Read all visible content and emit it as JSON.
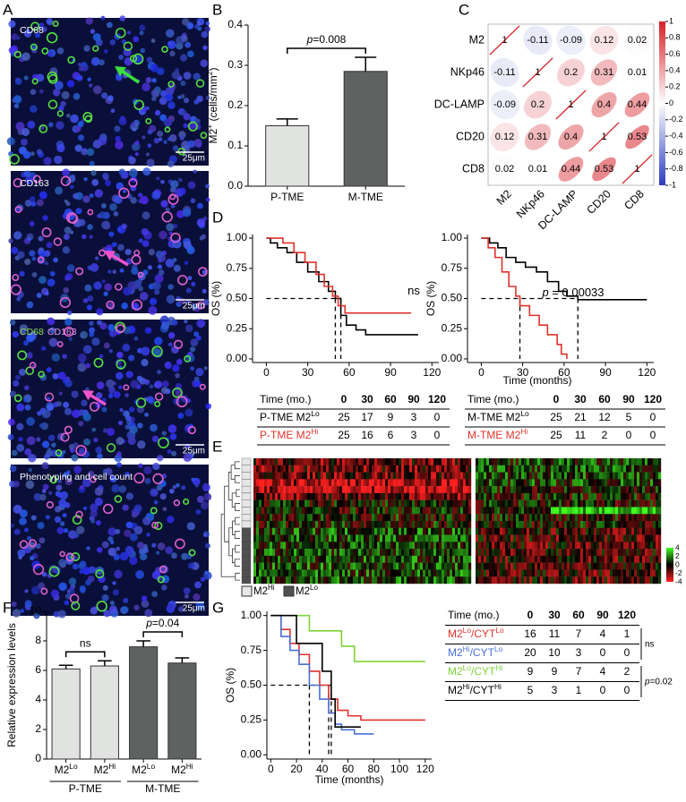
{
  "panel_labels": [
    "A",
    "B",
    "C",
    "D",
    "E",
    "F",
    "G"
  ],
  "images": [
    {
      "caption": [
        "CD68"
      ],
      "colors": [
        "#ffffff"
      ],
      "scale": "25μm"
    },
    {
      "caption": [
        "CD163"
      ],
      "colors": [
        "#ffffff"
      ],
      "scale": "25μm"
    },
    {
      "caption": [
        "CD68",
        "CD163"
      ],
      "colors": [
        "#8fe04a",
        "#e59ae0"
      ],
      "scale": "25μm"
    },
    {
      "caption": [
        "Phenotyping and cell count"
      ],
      "colors": [
        "#ffffff"
      ],
      "scale": "25μm"
    }
  ],
  "chart_data": [
    {
      "type": "bar",
      "ylabel": [
        "M2",
        "+",
        " (cells/mm",
        "2",
        ")"
      ],
      "categories": [
        [
          "P-TME"
        ],
        [
          "M-TME"
        ]
      ],
      "values": [
        0.15,
        0.285
      ],
      "errors": [
        0.017,
        0.035
      ],
      "colors": [
        "#e1e3e1",
        "#5e6361"
      ],
      "ylim": [
        0,
        0.4
      ],
      "yticks": [
        {
          "value": 0,
          "label": "0.0"
        },
        0.1,
        0.2,
        0.3,
        0.4
      ],
      "annotations": [
        [
          "p",
          "=0.008"
        ]
      ]
    },
    {
      "type": "corr",
      "labels": [
        "M2",
        "NKp46",
        "DC-LAMP",
        "CD20",
        "CD8"
      ],
      "matrix": [
        [
          1,
          -0.11,
          -0.09,
          0.12,
          0.02
        ],
        [
          -0.11,
          1,
          0.2,
          0.31,
          0.01
        ],
        [
          -0.09,
          0.2,
          1,
          0.4,
          0.44
        ],
        [
          0.12,
          0.31,
          0.4,
          1,
          0.53
        ],
        [
          0.02,
          0.01,
          0.44,
          0.53,
          1
        ]
      ],
      "clim": [
        -1,
        1
      ],
      "cticks": [
        1,
        0.8,
        0.6,
        0.4,
        0.2,
        0,
        -0.2,
        -0.4,
        -0.6,
        -0.8,
        -1
      ],
      "colors": [
        "#2b3dbf",
        "#ffffff",
        "#d51f26"
      ]
    },
    {
      "type": "km",
      "xlim": [
        -10,
        125
      ],
      "xticks": [
        0,
        30,
        60,
        90,
        120
      ],
      "ylim": [
        -0.03,
        1.03
      ],
      "yticks": [
        {
          "value": 1,
          "label": "1.00"
        },
        {
          "value": 0.75,
          "label": "0.75"
        },
        {
          "value": 0.5,
          "label": "0.50"
        },
        {
          "value": 0.25,
          "label": "0.25"
        },
        {
          "value": 0,
          "label": "0.00"
        }
      ],
      "ylabel": "OS (%)",
      "medians": [
        50,
        54
      ],
      "annotation": [
        "ns"
      ],
      "table_header": "Time (mo.)",
      "table_times": [
        0,
        30,
        60,
        90,
        120
      ],
      "series": [
        {
          "name": [
            "P-TME M2",
            "Lo"
          ],
          "color": "#000000",
          "x": [
            0,
            3,
            3,
            8,
            8,
            15,
            15,
            22,
            22,
            30,
            30,
            38,
            38,
            45,
            45,
            50,
            50,
            54,
            54,
            58,
            58,
            65,
            65,
            72,
            72,
            110
          ],
          "values": [
            1,
            1,
            0.96,
            0.96,
            0.92,
            0.92,
            0.88,
            0.88,
            0.8,
            0.8,
            0.72,
            0.72,
            0.64,
            0.64,
            0.56,
            0.56,
            0.5,
            0.5,
            0.36,
            0.36,
            0.28,
            0.28,
            0.24,
            0.24,
            0.2,
            0.2
          ],
          "at_risk": [
            25,
            17,
            9,
            3,
            0
          ]
        },
        {
          "name": [
            "P-TME M2",
            "Hi"
          ],
          "color": "#e0322b",
          "x": [
            0,
            12,
            12,
            20,
            20,
            28,
            28,
            36,
            36,
            42,
            42,
            48,
            48,
            52,
            52,
            57,
            57,
            105
          ],
          "values": [
            1,
            1,
            0.96,
            0.96,
            0.88,
            0.88,
            0.8,
            0.8,
            0.7,
            0.7,
            0.6,
            0.6,
            0.52,
            0.52,
            0.44,
            0.44,
            0.38,
            0.38
          ],
          "at_risk": [
            25,
            16,
            6,
            3,
            0
          ]
        }
      ]
    },
    {
      "type": "km",
      "xlim": [
        -10,
        125
      ],
      "xticks": [
        0,
        30,
        60,
        90,
        120
      ],
      "ylim": [
        -0.03,
        1.03
      ],
      "yticks": [
        {
          "value": 1,
          "label": "1.00"
        },
        {
          "value": 0.75,
          "label": "0.75"
        },
        {
          "value": 0.5,
          "label": "0.50"
        },
        {
          "value": 0.25,
          "label": "0.25"
        },
        {
          "value": 0,
          "label": "0.00"
        }
      ],
      "xlabel": "Time (months)",
      "ylabel": "OS (%)",
      "medians": [
        28,
        70
      ],
      "annotation": [
        "p",
        " = 0.00033"
      ],
      "table_header": "Time (mo.)",
      "table_times": [
        0,
        30,
        60,
        90,
        120
      ],
      "series": [
        {
          "name": [
            "M-TME M2",
            "Lo"
          ],
          "color": "#000000",
          "x": [
            0,
            6,
            6,
            12,
            12,
            18,
            18,
            25,
            25,
            32,
            32,
            40,
            40,
            48,
            48,
            56,
            56,
            62,
            62,
            70,
            70,
            120
          ],
          "values": [
            1,
            1,
            0.96,
            0.96,
            0.92,
            0.92,
            0.84,
            0.84,
            0.8,
            0.8,
            0.76,
            0.76,
            0.72,
            0.72,
            0.64,
            0.64,
            0.56,
            0.56,
            0.52,
            0.52,
            0.49,
            0.49
          ],
          "at_risk": [
            25,
            21,
            12,
            5,
            0
          ]
        },
        {
          "name": [
            "M-TME M2",
            "Hi"
          ],
          "color": "#e0322b",
          "x": [
            0,
            5,
            5,
            10,
            10,
            15,
            15,
            20,
            20,
            25,
            25,
            28,
            28,
            35,
            35,
            42,
            42,
            48,
            48,
            55,
            55,
            58,
            58,
            62,
            62,
            62
          ],
          "values": [
            1,
            1,
            0.92,
            0.92,
            0.84,
            0.84,
            0.72,
            0.72,
            0.6,
            0.6,
            0.52,
            0.52,
            0.44,
            0.44,
            0.36,
            0.36,
            0.28,
            0.28,
            0.2,
            0.2,
            0.12,
            0.12,
            0.04,
            0.04,
            0,
            0
          ],
          "at_risk": [
            25,
            11,
            2,
            0,
            0
          ]
        }
      ]
    },
    {
      "type": "heatmap",
      "legend": [
        [
          "M2",
          "Hi"
        ],
        [
          "M2",
          "Lo"
        ]
      ],
      "legend_colors": [
        "#e6e6e6",
        "#505050"
      ],
      "clim": [
        -4,
        4
      ],
      "cticks": [
        4,
        2,
        0,
        -2,
        -4
      ],
      "colors": [
        "#ff2020",
        "#000000",
        "#40ff20"
      ]
    },
    {
      "type": "bar",
      "ylabel": [
        "Relative expression levels"
      ],
      "categories": [
        [
          "M2",
          "Lo"
        ],
        [
          "M2",
          "Hi"
        ],
        [
          "M2",
          "Lo"
        ],
        [
          "M2",
          "Hi"
        ]
      ],
      "groups": [
        "P-TME",
        "M-TME"
      ],
      "values": [
        6.1,
        6.3,
        7.6,
        6.5
      ],
      "errors": [
        0.25,
        0.35,
        0.4,
        0.35
      ],
      "colors": [
        "#e1e3e1",
        "#e1e3e1",
        "#5e6361",
        "#5e6361"
      ],
      "ylim": [
        0,
        10
      ],
      "yticks": [
        0,
        2,
        4,
        6,
        8,
        10
      ],
      "annotations": [
        [
          "ns"
        ],
        [
          "p",
          "=0.04"
        ]
      ]
    },
    {
      "type": "km",
      "xlim": [
        -3,
        125
      ],
      "xticks": [
        0,
        20,
        40,
        60,
        80,
        100,
        120
      ],
      "ylim": [
        -0.03,
        1.03
      ],
      "yticks": [
        {
          "value": 1,
          "label": "1.00"
        },
        {
          "value": 0.75,
          "label": "0.75"
        },
        {
          "value": 0.5,
          "label": "0.50"
        },
        {
          "value": 0.25,
          "label": "0.25"
        },
        {
          "value": 0,
          "label": "0.00"
        }
      ],
      "xlabel": "Time (months)",
      "ylabel": "OS (%)",
      "medians": [
        30,
        45,
        47
      ],
      "table_header": "Time (mo.)",
      "table_times": [
        0,
        30,
        60,
        90,
        120
      ],
      "table_notes": [
        [
          "ns"
        ],
        [
          "p",
          "=0.02"
        ]
      ],
      "series": [
        {
          "name": [
            "M2",
            "Lo",
            "/CYT",
            "Lo"
          ],
          "color": "#e0322b",
          "x": [
            0,
            8,
            8,
            15,
            15,
            22,
            22,
            30,
            30,
            38,
            38,
            45,
            45,
            52,
            52,
            60,
            60,
            70,
            70,
            120
          ],
          "values": [
            1,
            1,
            0.9,
            0.9,
            0.8,
            0.8,
            0.72,
            0.72,
            0.6,
            0.6,
            0.5,
            0.5,
            0.4,
            0.4,
            0.32,
            0.32,
            0.28,
            0.28,
            0.25,
            0.25
          ],
          "at_risk": [
            16,
            11,
            7,
            4,
            1
          ]
        },
        {
          "name": [
            "M2",
            "Hi",
            "/CYT",
            "Lo"
          ],
          "color": "#4a6fd6",
          "x": [
            0,
            8,
            8,
            15,
            15,
            22,
            22,
            30,
            30,
            38,
            38,
            45,
            45,
            50,
            50,
            55,
            55,
            65,
            65,
            80
          ],
          "values": [
            1,
            1,
            0.85,
            0.85,
            0.75,
            0.75,
            0.65,
            0.65,
            0.5,
            0.5,
            0.4,
            0.4,
            0.3,
            0.3,
            0.22,
            0.22,
            0.18,
            0.18,
            0.15,
            0.15
          ],
          "at_risk": [
            20,
            10,
            3,
            0,
            0
          ]
        },
        {
          "name": [
            "M2",
            "Lo",
            "/CYT",
            "Hi"
          ],
          "color": "#7ed33a",
          "x": [
            0,
            30,
            30,
            55,
            55,
            65,
            65,
            120
          ],
          "values": [
            1,
            1,
            0.89,
            0.89,
            0.78,
            0.78,
            0.67,
            0.67
          ],
          "at_risk": [
            9,
            9,
            7,
            4,
            2
          ]
        },
        {
          "name": [
            "M2",
            "Hi",
            "/CYT",
            "Hi"
          ],
          "color": "#000000",
          "x": [
            0,
            20,
            20,
            40,
            40,
            47,
            47,
            50,
            50,
            70
          ],
          "values": [
            1,
            1,
            0.8,
            0.8,
            0.6,
            0.6,
            0.4,
            0.4,
            0.2,
            0.2
          ],
          "at_risk": [
            5,
            3,
            1,
            0,
            0
          ]
        }
      ]
    }
  ]
}
